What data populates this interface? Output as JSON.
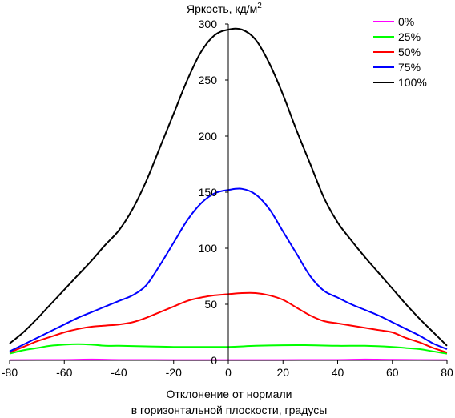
{
  "chart_data": {
    "type": "line",
    "ylabel": "Яркость, кд/м",
    "ylabel_superscript": "2",
    "xlabel_line1": "Отклонение от нормали",
    "xlabel_line2": "в горизонтальной плоскости, градусы",
    "xlim": [
      -80,
      80
    ],
    "ylim": [
      0,
      300
    ],
    "x_ticks": [
      -80,
      -60,
      -40,
      -20,
      0,
      20,
      40,
      60,
      80
    ],
    "x_tick_labels": [
      "-80",
      "-60",
      "-40",
      "-20",
      "0",
      "20",
      "40",
      "60",
      "80"
    ],
    "y_ticks": [
      0,
      50,
      100,
      150,
      200,
      250,
      300
    ],
    "y_tick_labels": [
      "0",
      "50",
      "100",
      "150",
      "200",
      "250",
      "300"
    ],
    "grid": false,
    "legend_position": "top-right",
    "series": [
      {
        "name": "0%",
        "color": "#ff00ff",
        "points": [
          [
            -80,
            0.3
          ],
          [
            -60,
            0.4
          ],
          [
            -50,
            0.8
          ],
          [
            -40,
            0.4
          ],
          [
            -20,
            0.3
          ],
          [
            0,
            0.3
          ],
          [
            20,
            0.3
          ],
          [
            40,
            0.4
          ],
          [
            50,
            0.8
          ],
          [
            60,
            0.5
          ],
          [
            80,
            0.3
          ]
        ]
      },
      {
        "name": "25%",
        "color": "#00ff00",
        "points": [
          [
            -80,
            6
          ],
          [
            -75,
            9
          ],
          [
            -70,
            11
          ],
          [
            -65,
            13
          ],
          [
            -60,
            14
          ],
          [
            -55,
            14.5
          ],
          [
            -50,
            14
          ],
          [
            -45,
            13
          ],
          [
            -40,
            13
          ],
          [
            -30,
            12.5
          ],
          [
            -20,
            12
          ],
          [
            -10,
            12
          ],
          [
            0,
            12
          ],
          [
            10,
            13
          ],
          [
            20,
            13.5
          ],
          [
            30,
            13.5
          ],
          [
            40,
            13
          ],
          [
            50,
            13
          ],
          [
            60,
            12
          ],
          [
            65,
            11
          ],
          [
            70,
            10
          ],
          [
            75,
            8
          ],
          [
            80,
            6
          ]
        ]
      },
      {
        "name": "50%",
        "color": "#ff0000",
        "points": [
          [
            -80,
            7
          ],
          [
            -75,
            12
          ],
          [
            -70,
            17
          ],
          [
            -65,
            21
          ],
          [
            -60,
            25
          ],
          [
            -55,
            28
          ],
          [
            -50,
            30
          ],
          [
            -45,
            31
          ],
          [
            -40,
            32
          ],
          [
            -35,
            34
          ],
          [
            -30,
            38
          ],
          [
            -25,
            43
          ],
          [
            -20,
            48
          ],
          [
            -15,
            53
          ],
          [
            -10,
            56
          ],
          [
            -5,
            58
          ],
          [
            0,
            59
          ],
          [
            5,
            60
          ],
          [
            10,
            60
          ],
          [
            15,
            58
          ],
          [
            20,
            54
          ],
          [
            25,
            47
          ],
          [
            30,
            40
          ],
          [
            35,
            35
          ],
          [
            40,
            33
          ],
          [
            45,
            31
          ],
          [
            50,
            29
          ],
          [
            55,
            27
          ],
          [
            60,
            25
          ],
          [
            65,
            20
          ],
          [
            70,
            16
          ],
          [
            75,
            11
          ],
          [
            80,
            7
          ]
        ]
      },
      {
        "name": "75%",
        "color": "#0000ff",
        "points": [
          [
            -80,
            8
          ],
          [
            -75,
            14
          ],
          [
            -70,
            20
          ],
          [
            -65,
            26
          ],
          [
            -60,
            32
          ],
          [
            -55,
            38
          ],
          [
            -50,
            43
          ],
          [
            -45,
            48
          ],
          [
            -40,
            53
          ],
          [
            -35,
            58
          ],
          [
            -30,
            67
          ],
          [
            -25,
            85
          ],
          [
            -20,
            105
          ],
          [
            -15,
            125
          ],
          [
            -10,
            140
          ],
          [
            -5,
            149
          ],
          [
            0,
            152
          ],
          [
            5,
            153
          ],
          [
            10,
            148
          ],
          [
            15,
            135
          ],
          [
            20,
            115
          ],
          [
            25,
            95
          ],
          [
            30,
            75
          ],
          [
            35,
            62
          ],
          [
            40,
            56
          ],
          [
            45,
            50
          ],
          [
            50,
            45
          ],
          [
            55,
            40
          ],
          [
            60,
            34
          ],
          [
            65,
            28
          ],
          [
            70,
            22
          ],
          [
            75,
            15
          ],
          [
            80,
            10
          ]
        ]
      },
      {
        "name": "100%",
        "color": "#000000",
        "points": [
          [
            -80,
            15
          ],
          [
            -75,
            25
          ],
          [
            -70,
            37
          ],
          [
            -65,
            50
          ],
          [
            -60,
            63
          ],
          [
            -55,
            76
          ],
          [
            -50,
            89
          ],
          [
            -45,
            103
          ],
          [
            -40,
            116
          ],
          [
            -35,
            135
          ],
          [
            -30,
            160
          ],
          [
            -25,
            190
          ],
          [
            -20,
            220
          ],
          [
            -15,
            250
          ],
          [
            -10,
            275
          ],
          [
            -5,
            290
          ],
          [
            0,
            295
          ],
          [
            5,
            295
          ],
          [
            10,
            286
          ],
          [
            15,
            265
          ],
          [
            20,
            237
          ],
          [
            25,
            205
          ],
          [
            30,
            175
          ],
          [
            35,
            145
          ],
          [
            40,
            123
          ],
          [
            45,
            107
          ],
          [
            50,
            92
          ],
          [
            55,
            78
          ],
          [
            60,
            64
          ],
          [
            65,
            50
          ],
          [
            70,
            37
          ],
          [
            75,
            25
          ],
          [
            80,
            13
          ]
        ]
      }
    ]
  }
}
